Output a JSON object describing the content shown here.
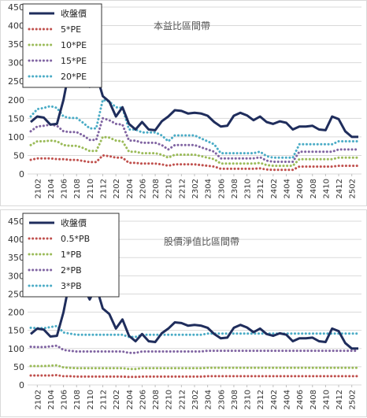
{
  "chart_data": [
    {
      "type": "line",
      "title": "本益比區間帶",
      "ylim": [
        0,
        450
      ],
      "yticks": [
        0,
        50,
        100,
        150,
        200,
        250,
        300,
        350,
        400,
        450
      ],
      "grid": true,
      "legend": "top-left",
      "x": [
        "2101",
        "2102",
        "2103",
        "2104",
        "2105",
        "2106",
        "2107",
        "2108",
        "2109",
        "2110",
        "2111",
        "2112",
        "2201",
        "2202",
        "2203",
        "2204",
        "2205",
        "2206",
        "2207",
        "2208",
        "2209",
        "2210",
        "2211",
        "2212",
        "2301",
        "2302",
        "2303",
        "2304",
        "2305",
        "2306",
        "2307",
        "2308",
        "2309",
        "2310",
        "2311",
        "2312",
        "2401",
        "2402",
        "2403",
        "2404",
        "2405",
        "2406",
        "2407",
        "2408",
        "2409",
        "2410",
        "2411",
        "2412",
        "2501",
        "2502",
        "2503"
      ],
      "xtick_labels": [
        "2102",
        "2104",
        "2106",
        "2108",
        "2110",
        "2112",
        "2202",
        "2204",
        "2206",
        "2208",
        "2210",
        "2212",
        "2302",
        "2304",
        "2306",
        "2308",
        "2310",
        "2312",
        "2402",
        "2404",
        "2406",
        "2408",
        "2410",
        "2412",
        "2502"
      ],
      "series": [
        {
          "name": "收盤價",
          "color": "#1f2d5c",
          "style": "solid",
          "values": [
            140,
            155,
            152,
            133,
            135,
            200,
            290,
            300,
            270,
            235,
            270,
            210,
            195,
            155,
            180,
            135,
            120,
            140,
            120,
            118,
            142,
            155,
            172,
            170,
            163,
            165,
            163,
            157,
            140,
            128,
            130,
            157,
            165,
            158,
            145,
            155,
            140,
            135,
            142,
            138,
            120,
            128,
            128,
            130,
            120,
            118,
            155,
            148,
            115,
            100,
            100
          ]
        },
        {
          "name": "5*PE",
          "color": "#c0504d",
          "style": "dotted",
          "values": [
            38,
            42,
            42,
            42,
            40,
            40,
            38,
            38,
            35,
            32,
            32,
            50,
            48,
            44,
            44,
            30,
            30,
            28,
            28,
            28,
            26,
            22,
            26,
            26,
            26,
            26,
            24,
            22,
            20,
            14,
            14,
            14,
            14,
            14,
            14,
            15,
            12,
            11,
            11,
            11,
            11,
            20,
            20,
            20,
            20,
            20,
            20,
            22,
            22,
            22,
            22
          ]
        },
        {
          "name": "10*PE",
          "color": "#9bbb59",
          "style": "dotted",
          "values": [
            78,
            88,
            88,
            90,
            88,
            78,
            76,
            76,
            70,
            62,
            62,
            100,
            98,
            90,
            88,
            60,
            60,
            56,
            56,
            56,
            52,
            44,
            52,
            52,
            52,
            52,
            48,
            44,
            40,
            28,
            28,
            28,
            28,
            28,
            28,
            30,
            24,
            22,
            22,
            22,
            22,
            40,
            40,
            40,
            40,
            40,
            40,
            44,
            44,
            44,
            44
          ]
        },
        {
          "name": "15*PE",
          "color": "#8064a2",
          "style": "dotted",
          "values": [
            115,
            128,
            130,
            133,
            130,
            115,
            113,
            113,
            104,
            92,
            92,
            150,
            145,
            135,
            133,
            90,
            90,
            84,
            84,
            84,
            78,
            66,
            78,
            78,
            78,
            78,
            72,
            66,
            60,
            42,
            42,
            42,
            42,
            42,
            42,
            45,
            36,
            33,
            33,
            33,
            33,
            60,
            60,
            60,
            60,
            60,
            60,
            66,
            66,
            66,
            66
          ]
        },
        {
          "name": "20*PE",
          "color": "#4bacc6",
          "style": "dotted",
          "values": [
            155,
            175,
            178,
            183,
            178,
            155,
            151,
            151,
            138,
            123,
            123,
            200,
            195,
            180,
            178,
            120,
            120,
            112,
            112,
            112,
            104,
            88,
            104,
            104,
            104,
            104,
            96,
            88,
            80,
            56,
            56,
            56,
            56,
            56,
            56,
            60,
            48,
            44,
            44,
            44,
            44,
            80,
            80,
            80,
            80,
            80,
            80,
            88,
            88,
            88,
            88
          ]
        }
      ]
    },
    {
      "type": "line",
      "title": "股價淨值比區間帶",
      "ylim": [
        0,
        450
      ],
      "yticks": [
        0,
        50,
        100,
        150,
        200,
        250,
        300,
        350,
        400,
        450
      ],
      "grid": true,
      "legend": "top-left",
      "x": [
        "2101",
        "2102",
        "2103",
        "2104",
        "2105",
        "2106",
        "2107",
        "2108",
        "2109",
        "2110",
        "2111",
        "2112",
        "2201",
        "2202",
        "2203",
        "2204",
        "2205",
        "2206",
        "2207",
        "2208",
        "2209",
        "2210",
        "2211",
        "2212",
        "2301",
        "2302",
        "2303",
        "2304",
        "2305",
        "2306",
        "2307",
        "2308",
        "2309",
        "2310",
        "2311",
        "2312",
        "2401",
        "2402",
        "2403",
        "2404",
        "2405",
        "2406",
        "2407",
        "2408",
        "2409",
        "2410",
        "2411",
        "2412",
        "2501",
        "2502",
        "2503"
      ],
      "xtick_labels": [
        "2102",
        "2104",
        "2106",
        "2108",
        "2110",
        "2112",
        "2202",
        "2204",
        "2206",
        "2208",
        "2210",
        "2212",
        "2302",
        "2304",
        "2306",
        "2308",
        "2310",
        "2312",
        "2402",
        "2404",
        "2406",
        "2408",
        "2410",
        "2412",
        "2502"
      ],
      "series": [
        {
          "name": "收盤價",
          "color": "#1f2d5c",
          "style": "solid",
          "values": [
            140,
            155,
            152,
            133,
            135,
            200,
            290,
            300,
            270,
            235,
            270,
            210,
            195,
            155,
            180,
            135,
            120,
            140,
            120,
            118,
            142,
            155,
            172,
            170,
            163,
            165,
            163,
            157,
            140,
            128,
            130,
            157,
            165,
            158,
            145,
            155,
            140,
            135,
            142,
            138,
            120,
            128,
            128,
            130,
            120,
            118,
            155,
            148,
            115,
            100,
            100
          ]
        },
        {
          "name": "0.5*PB",
          "color": "#c0504d",
          "style": "dotted",
          "values": [
            26,
            26,
            26,
            26,
            27,
            24,
            24,
            23,
            23,
            23,
            23,
            23,
            23,
            23,
            23,
            22,
            22,
            23,
            23,
            23,
            23,
            23,
            23,
            23,
            23,
            23,
            23,
            24,
            24,
            24,
            24,
            24,
            24,
            24,
            24,
            24,
            24,
            24,
            24,
            24,
            24,
            24,
            24,
            24,
            24,
            24,
            24,
            24,
            24,
            24,
            24
          ]
        },
        {
          "name": "1*PB",
          "color": "#9bbb59",
          "style": "dotted",
          "values": [
            52,
            52,
            52,
            53,
            54,
            48,
            47,
            46,
            46,
            46,
            46,
            46,
            46,
            46,
            46,
            44,
            44,
            46,
            46,
            46,
            46,
            46,
            46,
            46,
            46,
            46,
            46,
            47,
            47,
            47,
            47,
            47,
            47,
            47,
            47,
            47,
            47,
            47,
            47,
            47,
            47,
            47,
            47,
            47,
            47,
            47,
            47,
            47,
            47,
            47,
            47
          ]
        },
        {
          "name": "2*PB",
          "color": "#8064a2",
          "style": "dotted",
          "values": [
            105,
            104,
            104,
            106,
            108,
            96,
            94,
            92,
            92,
            92,
            92,
            92,
            92,
            92,
            92,
            88,
            88,
            92,
            92,
            92,
            92,
            92,
            92,
            92,
            92,
            92,
            92,
            94,
            94,
            94,
            94,
            94,
            94,
            94,
            94,
            94,
            94,
            94,
            94,
            94,
            94,
            94,
            94,
            94,
            94,
            94,
            94,
            94,
            94,
            94,
            94
          ]
        },
        {
          "name": "3*PB",
          "color": "#4bacc6",
          "style": "dotted",
          "values": [
            157,
            156,
            156,
            159,
            162,
            144,
            141,
            138,
            138,
            138,
            138,
            138,
            138,
            138,
            138,
            132,
            132,
            138,
            138,
            138,
            138,
            138,
            138,
            138,
            138,
            138,
            138,
            141,
            141,
            141,
            141,
            141,
            141,
            141,
            141,
            141,
            141,
            141,
            141,
            141,
            141,
            141,
            141,
            141,
            141,
            141,
            141,
            141,
            141,
            141,
            141
          ]
        }
      ]
    }
  ]
}
